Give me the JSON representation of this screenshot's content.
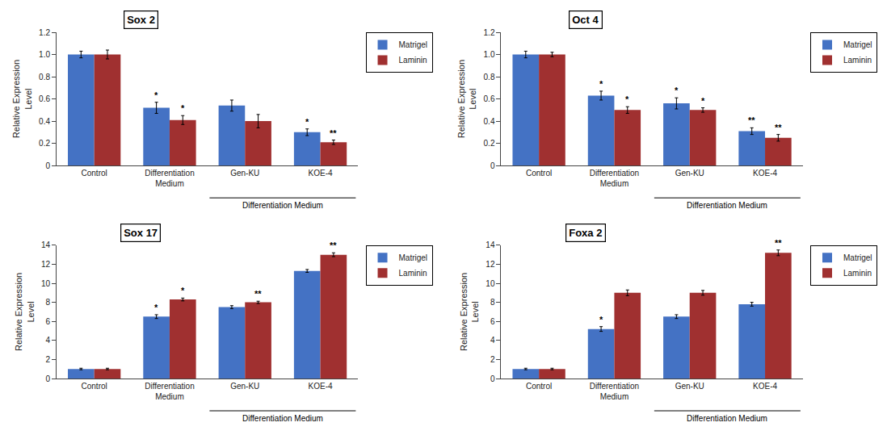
{
  "chart_data": [
    {
      "type": "bar",
      "title": "Sox 2",
      "ylabel": "Relative Expression\nLevel",
      "categories": [
        "Control",
        "Differentiation\nMedium",
        "Gen-KU",
        "KOE-4"
      ],
      "series": [
        {
          "name": "Matrigel",
          "color": "#4472C4",
          "values": [
            1.0,
            0.52,
            0.54,
            0.3
          ],
          "errors": [
            0.03,
            0.05,
            0.05,
            0.03
          ],
          "significance": [
            null,
            "*",
            null,
            "*"
          ]
        },
        {
          "name": "Laminin",
          "color": "#A03030",
          "values": [
            1.0,
            0.41,
            0.4,
            0.21
          ],
          "errors": [
            0.04,
            0.04,
            0.06,
            0.02
          ],
          "significance": [
            null,
            "*",
            null,
            "**"
          ]
        }
      ],
      "ylim": [
        0,
        1.2
      ],
      "yticks": [
        0,
        0.2,
        0.4,
        0.6,
        0.8,
        {
          "value": 1.0,
          "label": "1.0"
        },
        1.2
      ],
      "grid": false,
      "legend": "upper right",
      "annotations": [
        {
          "text": "Differentiation Medium",
          "span": [
            "Gen-KU",
            "KOE-4"
          ]
        }
      ]
    },
    {
      "type": "bar",
      "title": "Oct 4",
      "ylabel": "Relative Expression\nLevel",
      "categories": [
        "Control",
        "Differentiation\nMedium",
        "Gen-KU",
        "KOE-4"
      ],
      "series": [
        {
          "name": "Matrigel",
          "color": "#4472C4",
          "values": [
            1.0,
            0.63,
            0.56,
            0.31
          ],
          "errors": [
            0.03,
            0.04,
            0.05,
            0.03
          ],
          "significance": [
            null,
            "*",
            "*",
            "**"
          ]
        },
        {
          "name": "Laminin",
          "color": "#A03030",
          "values": [
            1.0,
            0.5,
            0.5,
            0.25
          ],
          "errors": [
            0.02,
            0.03,
            0.02,
            0.03
          ],
          "significance": [
            null,
            "*",
            "*",
            "**"
          ]
        }
      ],
      "ylim": [
        0,
        1.2
      ],
      "yticks": [
        0,
        0.2,
        0.4,
        0.6,
        0.8,
        {
          "value": 1.0,
          "label": "1.0"
        },
        1.2
      ],
      "grid": false,
      "legend": "upper right",
      "annotations": [
        {
          "text": "Differentiation Medium",
          "span": [
            "Gen-KU",
            "KOE-4"
          ]
        }
      ]
    },
    {
      "type": "bar",
      "title": "Sox 17",
      "ylabel": "Relative Expression\nLevel",
      "categories": [
        "Control",
        "Differentiation\nMedium",
        "Gen-KU",
        "KOE-4"
      ],
      "series": [
        {
          "name": "Matrigel",
          "color": "#4472C4",
          "values": [
            1.0,
            6.5,
            7.5,
            11.3
          ],
          "errors": [
            0.08,
            0.2,
            0.15,
            0.15
          ],
          "significance": [
            null,
            "*",
            null,
            null
          ]
        },
        {
          "name": "Laminin",
          "color": "#A03030",
          "values": [
            1.0,
            8.3,
            8.0,
            13.0
          ],
          "errors": [
            0.08,
            0.15,
            0.12,
            0.2
          ],
          "significance": [
            null,
            "*",
            "**",
            "**"
          ]
        }
      ],
      "ylim": [
        0,
        14
      ],
      "yticks": [
        0,
        2,
        4,
        6,
        8,
        10,
        12,
        14
      ],
      "grid": false,
      "legend": "upper right",
      "annotations": [
        {
          "text": "Differentiation Medium",
          "span": [
            "Gen-KU",
            "KOE-4"
          ]
        }
      ]
    },
    {
      "type": "bar",
      "title": "Foxa 2",
      "ylabel": "Relative Expression\nLevel",
      "categories": [
        "Control",
        "Differentiation\nMedium",
        "Gen-KU",
        "KOE-4"
      ],
      "series": [
        {
          "name": "Matrigel",
          "color": "#4472C4",
          "values": [
            1.0,
            5.2,
            6.5,
            7.8
          ],
          "errors": [
            0.08,
            0.25,
            0.2,
            0.2
          ],
          "significance": [
            null,
            "*",
            null,
            null
          ]
        },
        {
          "name": "Laminin",
          "color": "#A03030",
          "values": [
            1.0,
            9.0,
            9.0,
            13.2
          ],
          "errors": [
            0.08,
            0.3,
            0.25,
            0.3
          ],
          "significance": [
            null,
            null,
            null,
            "**"
          ]
        }
      ],
      "ylim": [
        0,
        14
      ],
      "yticks": [
        0,
        2,
        4,
        6,
        8,
        10,
        12,
        14
      ],
      "grid": false,
      "legend": "upper right",
      "annotations": [
        {
          "text": "Differentiation Medium",
          "span": [
            "Gen-KU",
            "KOE-4"
          ]
        }
      ]
    }
  ]
}
